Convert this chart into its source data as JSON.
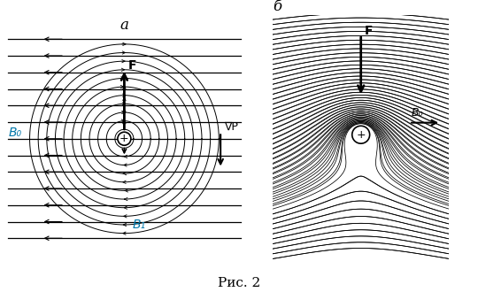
{
  "title_a": "a",
  "title_b": "б",
  "caption": "Рис. 2",
  "label_B0": "B₀",
  "label_B1": "B₁",
  "label_F": "F",
  "label_nablaP": "∇P",
  "label_B0_right": "B₀",
  "bg_color": "#ffffff",
  "line_color": "#000000",
  "label_color_cyan": "#0077aa",
  "n_horizontal_lines": 13,
  "n_circles": 11,
  "fig_width": 5.4,
  "fig_height": 3.3,
  "dpi": 100
}
